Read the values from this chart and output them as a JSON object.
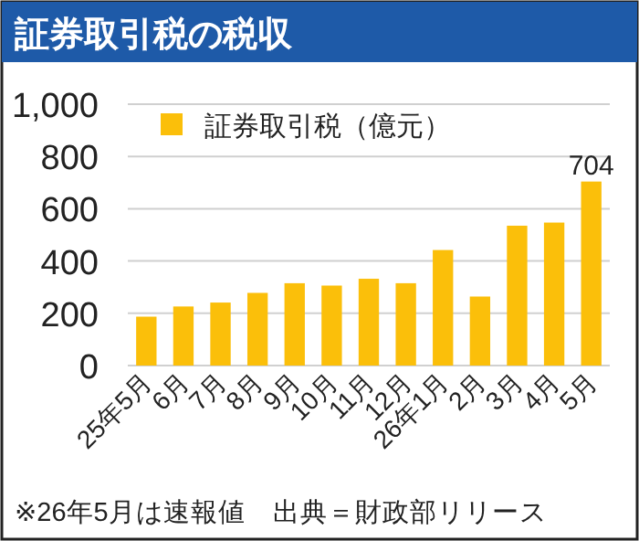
{
  "chart_data": {
    "type": "bar",
    "title": "証券取引税の税収",
    "categories": [
      "25年5月",
      "6月",
      "7月",
      "8月",
      "9月",
      "10月",
      "11月",
      "12月",
      "26年1月",
      "2月",
      "3月",
      "4月",
      "5月"
    ],
    "series": [
      {
        "name": "証券取引税（億元）",
        "color": "#fbbf0a",
        "values": [
          187,
          226,
          241,
          278,
          315,
          306,
          332,
          315,
          442,
          264,
          535,
          547,
          704
        ],
        "value_labels": [
          null,
          null,
          null,
          null,
          null,
          null,
          null,
          null,
          null,
          null,
          null,
          null,
          "704"
        ]
      }
    ],
    "ylim": [
      0,
      1000
    ],
    "yticks": [
      0,
      {
        "value": 200,
        "label": "200"
      },
      {
        "value": 400,
        "label": "400"
      },
      {
        "value": 600,
        "label": "600"
      },
      {
        "value": 800,
        "label": "800"
      },
      {
        "value": 1000,
        "label": "1,000"
      }
    ],
    "grid": "y",
    "legend": "top left",
    "annotations": [
      "※26年5月は速報値　出典＝財政部リリース"
    ]
  }
}
